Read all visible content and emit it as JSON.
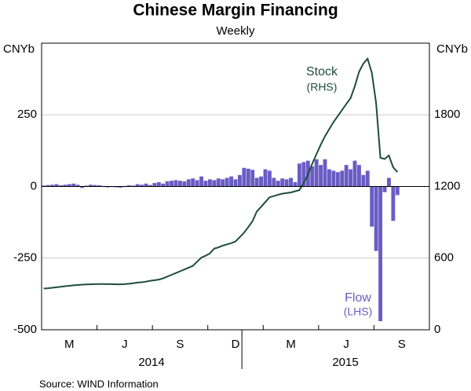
{
  "chart_data": {
    "type": "bar",
    "title": "Chinese Margin Financing",
    "subtitle": "Weekly",
    "ylabel": "CNYb",
    "y2label": "CNYb",
    "source": "Source:    WIND Information",
    "categories": [
      null,
      null,
      null,
      null,
      null,
      null,
      null,
      null,
      null,
      null,
      null,
      null,
      null,
      null,
      null,
      null,
      null,
      null,
      null,
      null,
      null,
      null,
      null,
      null,
      null,
      null,
      null,
      null,
      null,
      null,
      null,
      null,
      null,
      null,
      null,
      null,
      null,
      null,
      null,
      null,
      null,
      null,
      null,
      null,
      null,
      null,
      null,
      null,
      null,
      null,
      null,
      null,
      null,
      null,
      null,
      null,
      null,
      null,
      null,
      null,
      null,
      null,
      null,
      null,
      null,
      null,
      null,
      null,
      null,
      null,
      null,
      null,
      null,
      null,
      null,
      null,
      null,
      null,
      null,
      null,
      null,
      null,
      null,
      null
    ],
    "xticks": [
      {
        "value": 6,
        "label": "M"
      },
      {
        "value": 19,
        "label": "J"
      },
      {
        "value": 32,
        "label": "S"
      },
      {
        "value": 45,
        "label": "D"
      },
      {
        "value": 58,
        "label": "M"
      },
      {
        "value": 71,
        "label": "J"
      },
      {
        "value": 84,
        "label": "S"
      }
    ],
    "year_labels": [
      "2014",
      "2015"
    ],
    "ylim": [
      -500,
      500
    ],
    "yticks": [
      -500,
      -250,
      0,
      250
    ],
    "y2lim": [
      0,
      2400
    ],
    "y2ticks": [
      0,
      600,
      1200,
      1800
    ],
    "grid": true,
    "series": [
      {
        "name": "Flow",
        "type": "bar",
        "axis": "y",
        "color": "#6a5cc4",
        "note": "(LHS)",
        "values": [
          3,
          5,
          6,
          8,
          4,
          6,
          8,
          10,
          6,
          -5,
          3,
          6,
          5,
          4,
          2,
          -3,
          -2,
          -3,
          -4,
          -2,
          4,
          3,
          8,
          6,
          10,
          5,
          12,
          15,
          10,
          18,
          20,
          22,
          20,
          18,
          25,
          28,
          22,
          35,
          20,
          25,
          22,
          28,
          25,
          30,
          35,
          25,
          40,
          65,
          62,
          58,
          30,
          35,
          60,
          55,
          30,
          20,
          28,
          25,
          30,
          15,
          80,
          85,
          90,
          70,
          95,
          75,
          95,
          60,
          55,
          50,
          55,
          75,
          60,
          90,
          75,
          40,
          55,
          -140,
          -225,
          -470,
          -20,
          30,
          -120,
          -30
        ]
      },
      {
        "name": "Stock",
        "type": "line",
        "axis": "y2",
        "color": "#1d4d3b",
        "note": "(RHS)",
        "values": [
          345,
          348,
          352,
          356,
          360,
          365,
          368,
          372,
          375,
          378,
          380,
          381,
          382,
          383,
          383,
          382,
          382,
          381,
          381,
          382,
          385,
          390,
          395,
          398,
          403,
          410,
          415,
          420,
          430,
          445,
          460,
          475,
          490,
          505,
          520,
          535,
          570,
          605,
          620,
          640,
          680,
          690,
          705,
          715,
          725,
          740,
          775,
          813,
          860,
          910,
          990,
          1030,
          1070,
          1110,
          1120,
          1130,
          1140,
          1145,
          1150,
          1160,
          1170,
          1230,
          1300,
          1390,
          1470,
          1550,
          1620,
          1680,
          1740,
          1790,
          1840,
          1890,
          1940,
          2040,
          2160,
          2230,
          2270,
          2150,
          1900,
          1440,
          1430,
          1460,
          1360,
          1320
        ]
      }
    ]
  }
}
